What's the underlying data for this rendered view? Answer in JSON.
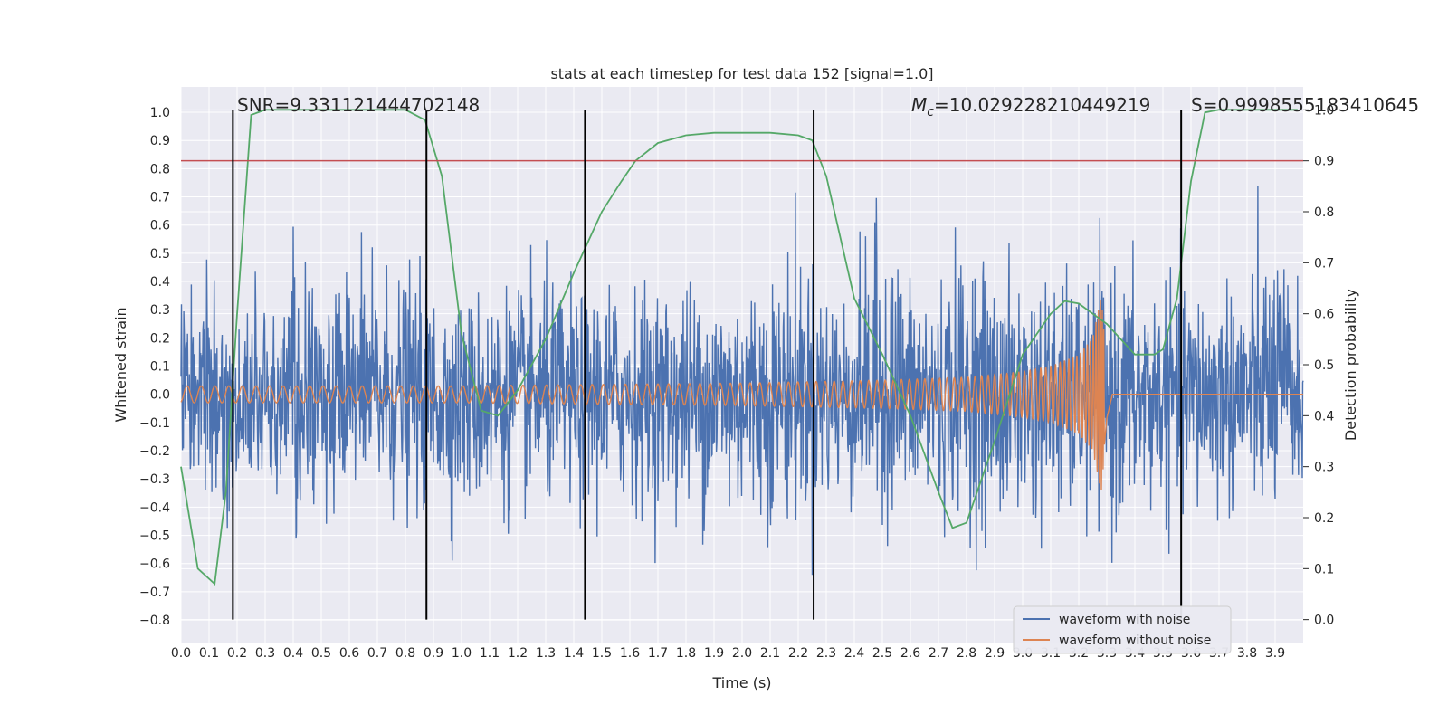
{
  "chart_data": {
    "type": "line",
    "title": "stats at each timestep for test data 152 [signal=1.0]",
    "xlabel": "Time (s)",
    "ylabel": "Whitened strain",
    "y2label": "Detection probability",
    "xlim": [
      0.0,
      4.0
    ],
    "ylim": [
      -0.88,
      1.09
    ],
    "y2lim": [
      -0.045,
      1.045
    ],
    "x_ticks": [
      0.0,
      0.1,
      0.2,
      0.3,
      0.4,
      0.5,
      0.6,
      0.7,
      0.8,
      0.9,
      1.0,
      1.1,
      1.2,
      1.3,
      1.4,
      1.5,
      1.6,
      1.7,
      1.8,
      1.9,
      2.0,
      2.1,
      2.2,
      2.3,
      2.4,
      2.5,
      2.6,
      2.7,
      2.8,
      2.9,
      3.0,
      3.1,
      3.2,
      3.3,
      3.4,
      3.5,
      3.6,
      3.7,
      3.8,
      3.9
    ],
    "x_tick_labels": [
      "0.0",
      "0.1",
      "0.2",
      "0.3",
      "0.4",
      "0.5",
      "0.6",
      "0.7",
      "0.8",
      "0.9",
      "1.0",
      "1.1",
      "1.2",
      "1.3",
      "1.4",
      "1.5",
      "1.6",
      "1.7",
      "1.8",
      "1.9",
      "2.0",
      "2.1",
      "2.2",
      "2.3",
      "2.4",
      "2.5",
      "2.6",
      "2.7",
      "2.8",
      "2.9",
      "3.0",
      "3.1",
      "3.2",
      "3.3",
      "3.4",
      "3.5",
      "3.6",
      "3.7",
      "3.8",
      "3.9"
    ],
    "y_ticks": [
      -0.8,
      -0.7,
      -0.6,
      -0.5,
      -0.4,
      -0.3,
      -0.2,
      -0.1,
      0.0,
      0.1,
      0.2,
      0.3,
      0.4,
      0.5,
      0.6,
      0.7,
      0.8,
      0.9,
      1.0
    ],
    "y_tick_labels": [
      "−0.8",
      "−0.7",
      "−0.6",
      "−0.5",
      "−0.4",
      "−0.3",
      "−0.2",
      "−0.1",
      "0.0",
      "0.1",
      "0.2",
      "0.3",
      "0.4",
      "0.5",
      "0.6",
      "0.7",
      "0.8",
      "0.9",
      "1.0"
    ],
    "y2_ticks": [
      0.0,
      0.1,
      0.2,
      0.3,
      0.4,
      0.5,
      0.6,
      0.7,
      0.8,
      0.9,
      1.0
    ],
    "y2_tick_labels": [
      "0.0",
      "0.1",
      "0.2",
      "0.3",
      "0.4",
      "0.5",
      "0.6",
      "0.7",
      "0.8",
      "0.9",
      "1.0"
    ],
    "grid": true,
    "legend_position": "bottom-right",
    "series": [
      {
        "name": "waveform with noise",
        "color": "#4c72b0",
        "axis": "left",
        "envelope": {
          "t": [
            0.0,
            0.1,
            0.2,
            0.3,
            0.4,
            0.5,
            0.6,
            0.7,
            0.8,
            0.9,
            1.0,
            1.1,
            1.2,
            1.3,
            1.4,
            1.5,
            1.6,
            1.7,
            1.8,
            1.9,
            2.0,
            2.1,
            2.2,
            2.3,
            2.4,
            2.5,
            2.6,
            2.7,
            2.8,
            2.9,
            3.0,
            3.1,
            3.2,
            3.3,
            3.4,
            3.5,
            3.6,
            3.7,
            3.8,
            3.9,
            4.0
          ],
          "max": [
            0.44,
            0.52,
            0.46,
            0.58,
            0.92,
            0.57,
            0.59,
            0.66,
            0.62,
            0.58,
            0.5,
            0.58,
            0.56,
            0.63,
            0.52,
            0.6,
            0.58,
            0.58,
            0.6,
            0.62,
            0.62,
            0.62,
            0.83,
            0.58,
            0.6,
            0.98,
            0.6,
            0.6,
            0.8,
            0.66,
            0.6,
            0.62,
            0.58,
            0.64,
            0.62,
            0.57,
            0.6,
            0.6,
            0.68,
            0.83,
            0.5
          ],
          "min": [
            -0.6,
            -0.66,
            -0.6,
            -0.65,
            -0.73,
            -0.62,
            -0.64,
            -0.66,
            -0.62,
            -0.64,
            -0.62,
            -0.66,
            -0.6,
            -0.62,
            -0.64,
            -0.62,
            -0.58,
            -0.6,
            -0.64,
            -0.66,
            -0.68,
            -0.68,
            -0.66,
            -0.62,
            -0.62,
            -0.64,
            -0.62,
            -0.7,
            -0.6,
            -0.78,
            -0.66,
            -0.74,
            -0.7,
            -0.76,
            -0.74,
            -0.6,
            -0.64,
            -0.62,
            -0.62,
            -0.64,
            -0.5
          ]
        }
      },
      {
        "name": "waveform without noise",
        "color": "#dd8452",
        "axis": "left",
        "chirp": {
          "t": [
            0.0,
            0.5,
            1.0,
            1.5,
            2.0,
            2.5,
            2.8,
            3.0,
            3.1,
            3.2,
            3.25,
            3.28,
            3.3,
            3.32,
            4.0
          ],
          "amplitude": [
            0.03,
            0.03,
            0.03,
            0.035,
            0.04,
            0.05,
            0.06,
            0.08,
            0.1,
            0.14,
            0.2,
            0.35,
            0.1,
            0.0,
            0.0
          ],
          "cycles_per_second_start": 20,
          "merger_time": 3.295
        }
      },
      {
        "name": "",
        "color": "#55a868",
        "axis": "right",
        "x": [
          0.0,
          0.06,
          0.12,
          0.16,
          0.2,
          0.25,
          0.3,
          0.5,
          0.7,
          0.8,
          0.87,
          0.93,
          1.0,
          1.07,
          1.13,
          1.2,
          1.3,
          1.4,
          1.5,
          1.57,
          1.62,
          1.7,
          1.8,
          1.9,
          2.0,
          2.1,
          2.2,
          2.25,
          2.3,
          2.4,
          2.5,
          2.6,
          2.7,
          2.75,
          2.8,
          2.9,
          3.0,
          3.1,
          3.15,
          3.2,
          3.3,
          3.4,
          3.47,
          3.5,
          3.55,
          3.6,
          3.65,
          3.7,
          3.8,
          3.9,
          3.98
        ],
        "y": [
          0.3,
          0.1,
          0.07,
          0.25,
          0.6,
          0.99,
          1.0,
          1.0,
          1.0,
          1.0,
          0.98,
          0.87,
          0.56,
          0.41,
          0.4,
          0.45,
          0.55,
          0.68,
          0.8,
          0.86,
          0.9,
          0.935,
          0.95,
          0.955,
          0.955,
          0.955,
          0.95,
          0.94,
          0.87,
          0.63,
          0.52,
          0.4,
          0.25,
          0.18,
          0.19,
          0.35,
          0.52,
          0.6,
          0.625,
          0.62,
          0.58,
          0.52,
          0.52,
          0.53,
          0.63,
          0.86,
          0.995,
          1.0,
          1.0,
          1.0,
          1.0
        ]
      }
    ],
    "threshold_line": {
      "value": 0.9,
      "axis": "right",
      "color": "#c44e52"
    },
    "vertical_markers": {
      "x": [
        0.185,
        0.875,
        1.44,
        2.255,
        3.565
      ],
      "y_from": 0.0,
      "y_to": 1.0,
      "axis": "right",
      "color": "#000000"
    },
    "annotations": {
      "snr": "SNR=9.331121444702148",
      "mc_symbol": "M",
      "mc_subscript": "c",
      "mc_value": "=10.029228210449219",
      "s": "S=0.9998555183410645"
    },
    "legend_entries": [
      "waveform with noise",
      "waveform without noise"
    ]
  }
}
